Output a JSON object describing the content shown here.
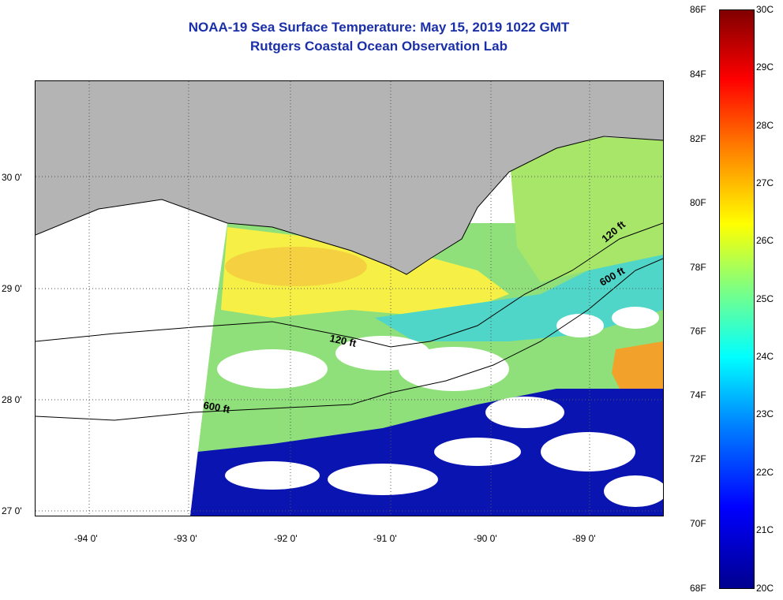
{
  "title": {
    "line1": "NOAA-19 Sea Surface Temperature:  May 15, 2019 1022 GMT",
    "line2": "Rutgers Coastal Ocean Observation Lab"
  },
  "map": {
    "lat_labels": [
      "30 0'",
      "29 0'",
      "28 0'",
      "27 0'"
    ],
    "lon_labels": [
      "-94 0'",
      "-93 0'",
      "-92 0'",
      "-91 0'",
      "-90 0'",
      "-89 0'"
    ],
    "contour_labels": [
      "120 ft",
      "600 ft",
      "120 ft",
      "600 ft"
    ],
    "colors": {
      "land": "#b4b4b4",
      "no_data": "#ffffff",
      "contour": "#000000"
    }
  },
  "colorbar": {
    "fahrenheit_labels": [
      "86F",
      "84F",
      "82F",
      "80F",
      "78F",
      "76F",
      "74F",
      "72F",
      "70F",
      "68F"
    ],
    "celsius_labels": [
      "30C",
      "29C",
      "28C",
      "27C",
      "26C",
      "25C",
      "24C",
      "23C",
      "22C",
      "21C",
      "20C"
    ],
    "colors": [
      "#00008f",
      "#0000ff",
      "#0080ff",
      "#00ffff",
      "#80ff80",
      "#ffff00",
      "#ff8000",
      "#ff0000",
      "#800000"
    ]
  }
}
